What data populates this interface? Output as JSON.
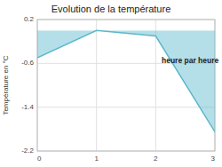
{
  "chart_data": {
    "type": "area",
    "title": "Evolution de la température",
    "y_label": "Température en °C",
    "annotations": [
      {
        "text": "heure par heure",
        "x": 2.1,
        "y": -0.55
      }
    ],
    "x": [
      0,
      1,
      2,
      3
    ],
    "values": [
      -0.5,
      0.0,
      -0.1,
      -1.85
    ],
    "color": "#5bb8cc",
    "xlim": [
      0,
      3
    ],
    "ylim": [
      -2.2,
      0.2
    ],
    "xticks": [
      0,
      1,
      2,
      3
    ],
    "yticks": [
      0.2,
      -0.6,
      -1.4,
      -2.2
    ],
    "grid": true
  }
}
